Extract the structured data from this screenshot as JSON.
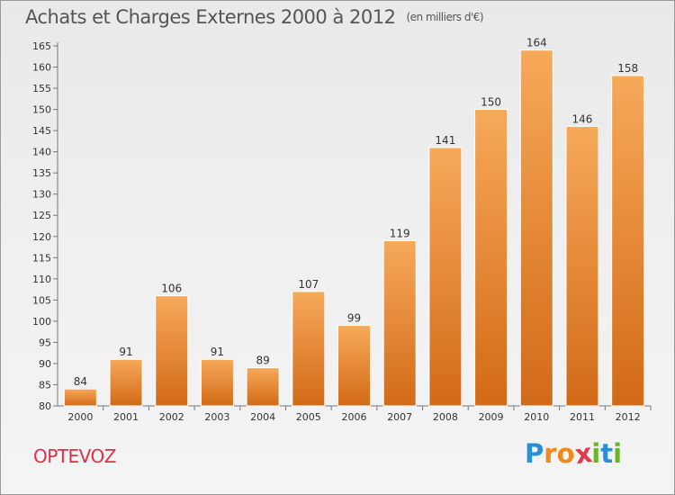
{
  "chart_data": {
    "type": "bar",
    "title": "Achats et Charges Externes 2000 à 2012",
    "subtitle": "(en milliers d'€)",
    "categories": [
      "2000",
      "2001",
      "2002",
      "2003",
      "2004",
      "2005",
      "2006",
      "2007",
      "2008",
      "2009",
      "2010",
      "2011",
      "2012"
    ],
    "values": [
      84,
      91,
      106,
      91,
      89,
      107,
      99,
      119,
      141,
      150,
      164,
      146,
      158
    ],
    "ylim": [
      80,
      165
    ],
    "yticks": [
      80,
      85,
      90,
      95,
      100,
      105,
      110,
      115,
      120,
      125,
      130,
      135,
      140,
      145,
      150,
      155,
      160,
      165
    ],
    "grid": false,
    "bar_color_top": "#f7a95a",
    "bar_color_bottom": "#d26a17",
    "label": "OPTEVOZ"
  },
  "logo": {
    "letters": [
      "P",
      "r",
      "o",
      "x",
      "i",
      "t",
      "i"
    ],
    "colors": [
      "#2b8fd8",
      "#f08a1c",
      "#f08a1c",
      "#e23a4e",
      "#6bb52b",
      "#2b8fd8",
      "#6bb52b"
    ]
  }
}
